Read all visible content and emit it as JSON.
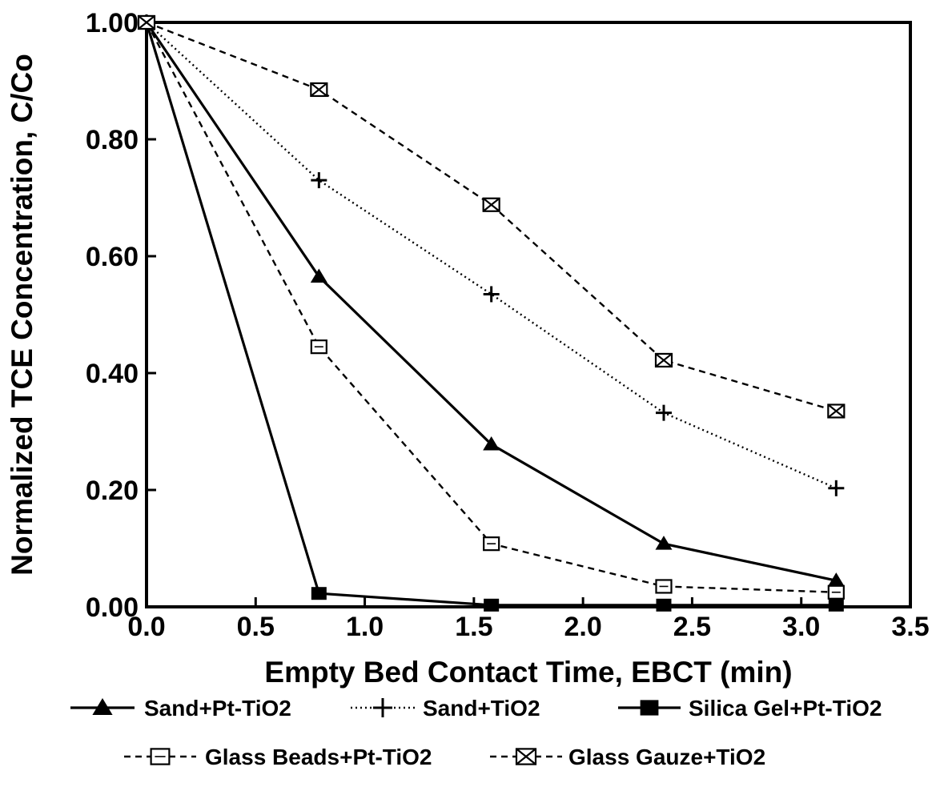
{
  "chart_data": {
    "type": "line",
    "title": "",
    "xlabel": "Empty Bed Contact Time, EBCT (min)",
    "ylabel": "Normalized TCE Concentration, C/Co",
    "xlim": [
      0,
      3.5
    ],
    "ylim": [
      0,
      1.0
    ],
    "x_ticks": [
      "0.0",
      "0.5",
      "1.0",
      "1.5",
      "2.0",
      "2.5",
      "3.0",
      "3.5"
    ],
    "y_ticks": [
      "0.00",
      "0.20",
      "0.40",
      "0.60",
      "0.80",
      "1.00"
    ],
    "grid": false,
    "legend_position": "bottom",
    "series": [
      {
        "name": "Sand+Pt-TiO2",
        "marker": "filled-triangle",
        "line": "solid",
        "x": [
          0.0,
          0.79,
          1.58,
          2.37,
          3.16
        ],
        "y": [
          1.0,
          0.565,
          0.278,
          0.108,
          0.045
        ]
      },
      {
        "name": "Sand+TiO2",
        "marker": "plus",
        "line": "dotted",
        "x": [
          0.0,
          0.79,
          1.58,
          2.37,
          3.16
        ],
        "y": [
          1.0,
          0.73,
          0.535,
          0.332,
          0.203
        ]
      },
      {
        "name": "Silica Gel+Pt-TiO2",
        "marker": "filled-square",
        "line": "solid",
        "x": [
          0.0,
          0.79,
          1.58,
          2.37,
          3.16
        ],
        "y": [
          1.0,
          0.023,
          0.003,
          0.003,
          0.003
        ]
      },
      {
        "name": "Glass Beads+Pt-TiO2",
        "marker": "open-square",
        "line": "dashed",
        "x": [
          0.0,
          0.79,
          1.58,
          2.37,
          3.16
        ],
        "y": [
          1.0,
          0.445,
          0.108,
          0.035,
          0.025
        ]
      },
      {
        "name": "Glass Gauze+TiO2",
        "marker": "hourglass",
        "line": "dashed",
        "x": [
          0.0,
          0.79,
          1.58,
          2.37,
          3.16
        ],
        "y": [
          1.0,
          0.885,
          0.688,
          0.422,
          0.335
        ]
      }
    ]
  }
}
